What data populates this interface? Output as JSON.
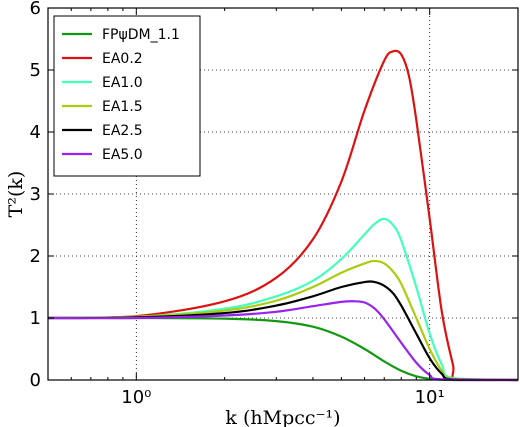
{
  "chart_data": {
    "type": "line",
    "xscale": "log",
    "xlim": [
      0.5,
      20
    ],
    "ylim": [
      0,
      6
    ],
    "grid": true,
    "legend_position": "top-left",
    "xlabel": "k (hMpcc⁻¹)",
    "ylabel": "T²(k)",
    "x_ticks": [
      {
        "value": 1,
        "label": "10⁰"
      },
      {
        "value": 10,
        "label": "10¹"
      }
    ],
    "y_ticks": [
      0,
      1,
      2,
      3,
      4,
      5,
      6
    ],
    "series": [
      {
        "name": "FPψDM_1.1",
        "color": "#119911",
        "x": [
          0.5,
          1,
          2,
          3,
          4,
          5,
          6,
          7,
          8,
          9,
          10,
          11,
          12,
          20
        ],
        "y": [
          1.0,
          1.0,
          0.99,
          0.95,
          0.86,
          0.7,
          0.5,
          0.3,
          0.15,
          0.06,
          0.02,
          0.005,
          0.0,
          0.0
        ]
      },
      {
        "name": "EA0.2",
        "color": "#dd1111",
        "x": [
          0.5,
          1,
          2,
          3,
          4,
          5,
          6,
          7,
          7.5,
          8,
          8.5,
          9,
          10,
          11,
          12,
          12.5,
          20
        ],
        "y": [
          1.0,
          1.03,
          1.27,
          1.65,
          2.27,
          3.2,
          4.35,
          5.15,
          5.3,
          5.25,
          4.9,
          4.2,
          2.6,
          1.1,
          0.25,
          0.0,
          0.0
        ]
      },
      {
        "name": "EA1.0",
        "color": "#44ffbb",
        "x": [
          0.5,
          1,
          2,
          3,
          4,
          5,
          6,
          6.5,
          7,
          7.5,
          8,
          9,
          10,
          11,
          12,
          20
        ],
        "y": [
          1.0,
          1.02,
          1.15,
          1.35,
          1.6,
          1.95,
          2.35,
          2.52,
          2.6,
          2.5,
          2.25,
          1.5,
          0.75,
          0.25,
          0.03,
          0.0
        ]
      },
      {
        "name": "EA1.5",
        "color": "#aacc11",
        "x": [
          0.5,
          1,
          2,
          3,
          4,
          5,
          6,
          6.5,
          7,
          7.5,
          8,
          9,
          10,
          11,
          12,
          20
        ],
        "y": [
          1.0,
          1.02,
          1.12,
          1.28,
          1.5,
          1.73,
          1.88,
          1.92,
          1.88,
          1.75,
          1.55,
          1.0,
          0.5,
          0.15,
          0.02,
          0.0
        ]
      },
      {
        "name": "EA2.5",
        "color": "#000000",
        "x": [
          0.5,
          1,
          2,
          3,
          4,
          5,
          6,
          6.5,
          7,
          7.5,
          8,
          9,
          10,
          11,
          12,
          20
        ],
        "y": [
          1.0,
          1.01,
          1.08,
          1.2,
          1.35,
          1.5,
          1.58,
          1.58,
          1.52,
          1.4,
          1.2,
          0.75,
          0.35,
          0.1,
          0.01,
          0.0
        ]
      },
      {
        "name": "EA5.0",
        "color": "#9922ee",
        "x": [
          0.5,
          1,
          2,
          3,
          4,
          5,
          5.5,
          6,
          6.5,
          7,
          8,
          9,
          10,
          11,
          20
        ],
        "y": [
          1.0,
          1.0,
          1.04,
          1.1,
          1.19,
          1.26,
          1.27,
          1.25,
          1.15,
          0.98,
          0.6,
          0.28,
          0.08,
          0.01,
          0.0
        ]
      }
    ]
  }
}
